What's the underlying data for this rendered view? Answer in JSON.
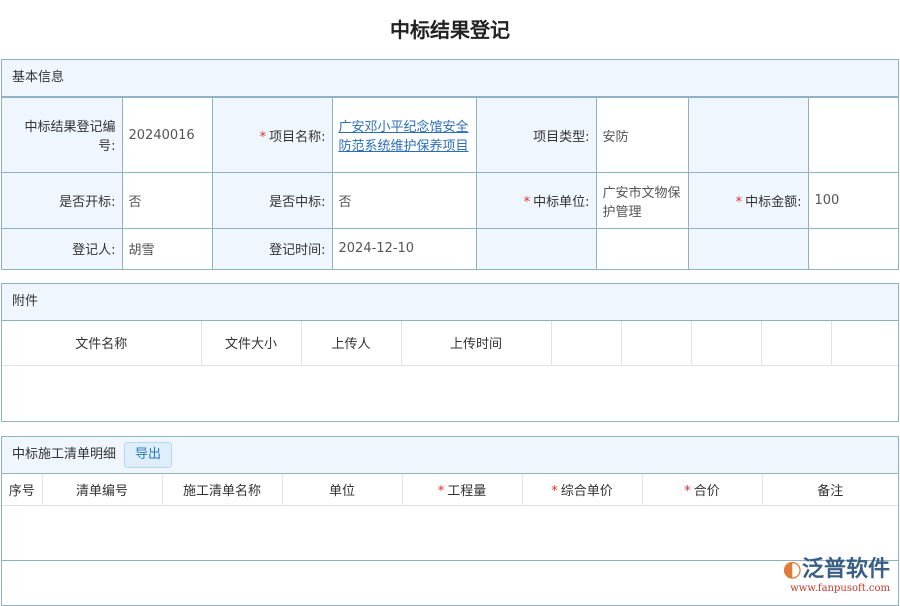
{
  "title": "中标结果登记",
  "basic": {
    "header": "基本信息",
    "rows": [
      [
        {
          "label": "中标结果登记编号:",
          "value": "20240016"
        },
        {
          "label": "项目名称:",
          "value": "广安邓小平纪念馆安全防范系统维护保养项目",
          "required": true,
          "link": true
        },
        {
          "label": "项目类型:",
          "value": "安防"
        },
        {
          "label": "",
          "value": ""
        }
      ],
      [
        {
          "label": "是否开标:",
          "value": "否"
        },
        {
          "label": "是否中标:",
          "value": "否"
        },
        {
          "label": "中标单位:",
          "value": "广安市文物保护管理",
          "required": true
        },
        {
          "label": "中标金额:",
          "value": "100",
          "required": true
        }
      ],
      [
        {
          "label": "登记人:",
          "value": "胡雪"
        },
        {
          "label": "登记时间:",
          "value": "2024-12-10"
        },
        {
          "label": "",
          "value": ""
        },
        {
          "label": "",
          "value": ""
        }
      ]
    ]
  },
  "attachments": {
    "header": "附件",
    "columns": [
      "文件名称",
      "文件大小",
      "上传人",
      "上传时间",
      "",
      "",
      "",
      "",
      ""
    ]
  },
  "detail": {
    "header": "中标施工清单明细",
    "export_label": "导出",
    "columns": [
      {
        "label": "序号"
      },
      {
        "label": "清单编号"
      },
      {
        "label": "施工清单名称"
      },
      {
        "label": "单位"
      },
      {
        "label": "工程量",
        "required": true
      },
      {
        "label": "综合单价",
        "required": true
      },
      {
        "label": "合价",
        "required": true
      },
      {
        "label": "备注"
      }
    ]
  },
  "watermark": {
    "brand": "泛普软件",
    "url": "www.fanpusoft.com"
  }
}
